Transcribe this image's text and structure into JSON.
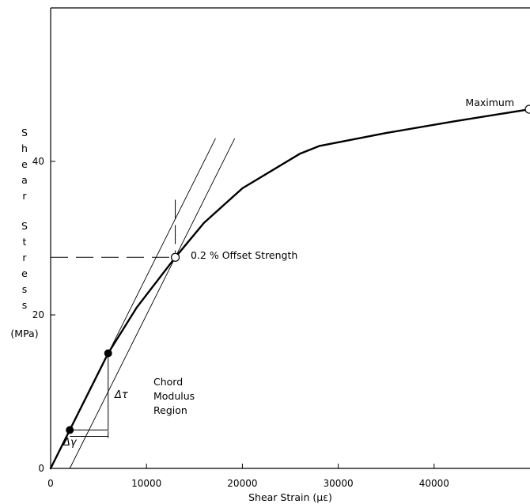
{
  "chart_data": {
    "type": "line",
    "title": "",
    "xlabel": "Shear Strain (με)",
    "ylabel_letters": [
      "S",
      "h",
      "e",
      "a",
      "r",
      "S",
      "t",
      "r",
      "e",
      "s",
      "s"
    ],
    "ylabel_unit": "(MPa)",
    "xlim": [
      0,
      50000
    ],
    "ylim": [
      0,
      60
    ],
    "x_ticks": [
      0,
      10000,
      20000,
      30000,
      40000
    ],
    "x_tick_labels": [
      "0",
      "10000",
      "20000",
      "30000",
      "40000"
    ],
    "y_ticks": [
      0,
      20,
      40
    ],
    "y_tick_labels": [
      "0",
      "20",
      "40"
    ],
    "grid": false,
    "series": [
      {
        "x": [
          0,
          2000,
          6000,
          9000,
          13000,
          16000,
          20000,
          26000,
          28000,
          35000,
          42000,
          50000
        ],
        "y": [
          0,
          5,
          15,
          21,
          27.5,
          32,
          36.5,
          41,
          42,
          43.7,
          45.2,
          46.8
        ]
      }
    ],
    "chord_points": [
      {
        "x": 2000,
        "y": 5
      },
      {
        "x": 6000,
        "y": 15
      }
    ],
    "chord_line": {
      "x": [
        0,
        17200
      ],
      "y": [
        0,
        43
      ]
    },
    "offset_line": {
      "x": [
        2000,
        19200
      ],
      "y": [
        0,
        43
      ]
    },
    "offset_strength": {
      "x": 13000,
      "y": 27.5,
      "label": "0.2 % Offset Strength"
    },
    "maximum": {
      "x": 50000,
      "y": 46.8,
      "label": "Maximum"
    },
    "annotations": {
      "region_lines": [
        "Chord",
        "Modulus",
        "Region"
      ],
      "delta_tau": "Δτ",
      "delta_gamma": "Δγ"
    }
  }
}
